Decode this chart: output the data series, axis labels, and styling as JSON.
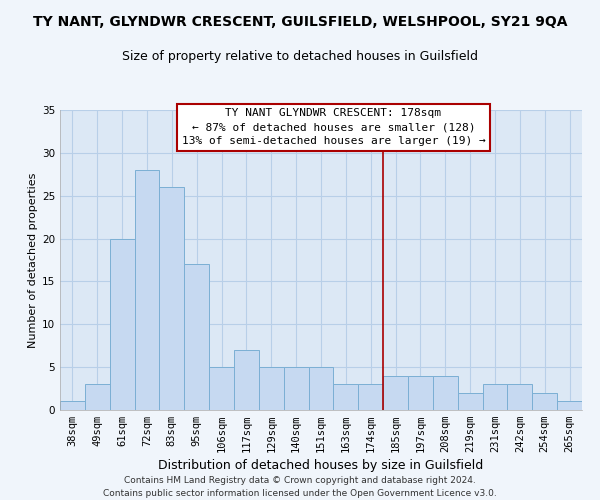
{
  "title": "TY NANT, GLYNDWR CRESCENT, GUILSFIELD, WELSHPOOL, SY21 9QA",
  "subtitle": "Size of property relative to detached houses in Guilsfield",
  "xlabel": "Distribution of detached houses by size in Guilsfield",
  "ylabel": "Number of detached properties",
  "bar_labels": [
    "38sqm",
    "49sqm",
    "61sqm",
    "72sqm",
    "83sqm",
    "95sqm",
    "106sqm",
    "117sqm",
    "129sqm",
    "140sqm",
    "151sqm",
    "163sqm",
    "174sqm",
    "185sqm",
    "197sqm",
    "208sqm",
    "219sqm",
    "231sqm",
    "242sqm",
    "254sqm",
    "265sqm"
  ],
  "bar_values": [
    1,
    3,
    20,
    28,
    26,
    17,
    5,
    7,
    5,
    5,
    5,
    3,
    3,
    4,
    4,
    4,
    2,
    3,
    3,
    2,
    1
  ],
  "bar_color": "#c6d9f1",
  "bar_edgecolor": "#7bafd4",
  "vline_color": "#aa0000",
  "ylim": [
    0,
    35
  ],
  "yticks": [
    0,
    5,
    10,
    15,
    20,
    25,
    30,
    35
  ],
  "annotation_title": "TY NANT GLYNDWR CRESCENT: 178sqm",
  "annotation_line1": "← 87% of detached houses are smaller (128)",
  "annotation_line2": "13% of semi-detached houses are larger (19) →",
  "annotation_box_edgecolor": "#aa0000",
  "annotation_box_facecolor": "#ffffff",
  "footer_line1": "Contains HM Land Registry data © Crown copyright and database right 2024.",
  "footer_line2": "Contains public sector information licensed under the Open Government Licence v3.0.",
  "fig_facecolor": "#f0f5fb",
  "plot_facecolor": "#dce8f5",
  "grid_color": "#b8cfe8",
  "title_fontsize": 10,
  "subtitle_fontsize": 9,
  "xlabel_fontsize": 9,
  "ylabel_fontsize": 8,
  "tick_fontsize": 7.5,
  "annot_fontsize": 8,
  "footer_fontsize": 6.5
}
